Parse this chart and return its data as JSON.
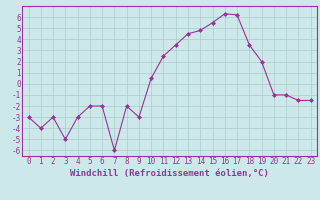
{
  "x": [
    0,
    1,
    2,
    3,
    4,
    5,
    6,
    7,
    8,
    9,
    10,
    11,
    12,
    13,
    14,
    15,
    16,
    17,
    18,
    19,
    20,
    21,
    22,
    23
  ],
  "y": [
    -3,
    -4,
    -3,
    -5,
    -3,
    -2,
    -2,
    -6,
    -2,
    -3,
    0.5,
    2.5,
    3.5,
    4.5,
    4.8,
    5.5,
    6.3,
    6.2,
    3.5,
    2,
    -1,
    -1,
    -1.5,
    -1.5
  ],
  "line_color": "#993399",
  "marker": "D",
  "marker_size": 2,
  "bg_color": "#cce8e8",
  "grid_color": "#aacccc",
  "xlabel": "Windchill (Refroidissement éolien,°C)",
  "xlim": [
    -0.5,
    23.5
  ],
  "ylim": [
    -6.5,
    7
  ],
  "xticks": [
    0,
    1,
    2,
    3,
    4,
    5,
    6,
    7,
    8,
    9,
    10,
    11,
    12,
    13,
    14,
    15,
    16,
    17,
    18,
    19,
    20,
    21,
    22,
    23
  ],
  "yticks": [
    -6,
    -5,
    -4,
    -3,
    -2,
    -1,
    0,
    1,
    2,
    3,
    4,
    5,
    6
  ],
  "tick_fontsize": 5.5,
  "xlabel_fontsize": 6.5,
  "label_color": "#993399",
  "spine_color": "#993399"
}
